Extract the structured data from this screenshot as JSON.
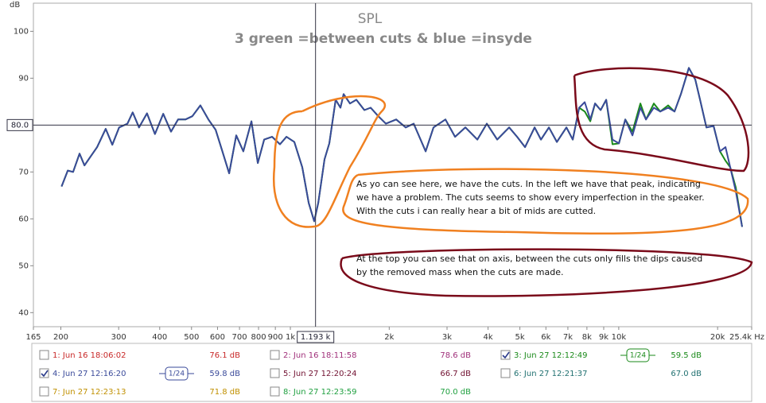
{
  "chart_data": {
    "type": "line",
    "title": "SPL",
    "subtitle": "3 green =between cuts & blue =insyde",
    "y_label": "dB",
    "xlim": [
      165,
      25400
    ],
    "ylim": [
      37,
      106
    ],
    "log_x": true,
    "xticks": [
      165,
      200,
      300,
      400,
      500,
      600,
      700,
      800,
      900,
      {
        "value": 1000,
        "label": "1k"
      },
      {
        "value": 2000,
        "label": "2k"
      },
      {
        "value": 3000,
        "label": "3k"
      },
      {
        "value": 4000,
        "label": "4k"
      },
      {
        "value": 5000,
        "label": "5k"
      },
      {
        "value": 6000,
        "label": "6k"
      },
      {
        "value": 7000,
        "label": "7k"
      },
      {
        "value": 8000,
        "label": "8k"
      },
      {
        "value": 9000,
        "label": "9k"
      },
      {
        "value": 10000,
        "label": "10k"
      },
      {
        "value": 20000,
        "label": "20k"
      },
      {
        "value": 25400,
        "label": "25.4k Hz"
      }
    ],
    "yticks": [
      40,
      50,
      60,
      70,
      80,
      90,
      100
    ],
    "cursor": {
      "x": {
        "value": 1193,
        "label": "1.193 k"
      },
      "y": {
        "value": 80,
        "label": "80.0"
      }
    },
    "x": [
      201,
      210,
      218,
      228,
      236,
      247,
      258,
      274,
      287,
      301,
      319,
      331,
      346,
      366,
      387,
      410,
      433,
      455,
      479,
      503,
      532,
      563,
      592,
      619,
      651,
      684,
      719,
      761,
      796,
      832,
      880,
      930,
      973,
      1028,
      1087,
      1137,
      1182,
      1216,
      1271,
      1314,
      1374,
      1421,
      1453,
      1519,
      1588,
      1680,
      1756,
      1846,
      1953,
      2100,
      2244,
      2374,
      2582,
      2729,
      2967,
      3173,
      3412,
      3709,
      3965,
      4265,
      4637,
      4904,
      5184,
      5544,
      5797,
      6129,
      6480,
      6929,
      7244,
      7575,
      7877,
      8189,
      8469,
      8806,
      9156,
      9573,
      10011,
      10468,
      11007,
      11639,
      12101,
      12792,
      13376,
      14144,
      14789,
      15465,
      16352,
      17100,
      17690,
      18490,
      19440,
      20330,
      21140,
      21850,
      22720,
      23760
    ],
    "series": [
      {
        "name": "3: Jun 27 12:12:49",
        "color": "#1a8a1a",
        "values": [
          66.9,
          70.3,
          70,
          73.9,
          71.4,
          73.4,
          75.3,
          79.2,
          75.8,
          79.5,
          80.3,
          82.7,
          79.5,
          82.5,
          78.1,
          82.4,
          78.6,
          81.2,
          81.2,
          81.9,
          84.2,
          81.2,
          79,
          74.7,
          69.7,
          77.8,
          74.4,
          80.8,
          71.9,
          76.9,
          77.5,
          75.9,
          77.5,
          76.4,
          71,
          63.4,
          59.5,
          63.4,
          72.7,
          76.1,
          85.4,
          83.7,
          86.6,
          84.6,
          85.4,
          83.2,
          83.7,
          82,
          80.3,
          81.2,
          79.5,
          80.3,
          74.4,
          79.5,
          81.2,
          77.5,
          79.5,
          76.9,
          80.3,
          76.9,
          79.5,
          77.5,
          75.3,
          79.5,
          76.9,
          79.5,
          76.4,
          79.5,
          76.9,
          83.7,
          82.9,
          80.8,
          84.6,
          83.2,
          85.4,
          75.9,
          76.1,
          81.2,
          78.6,
          84.6,
          81.2,
          84.6,
          82.9,
          84.2,
          82.9,
          86.6,
          92.2,
          89.7,
          85.4,
          79.5,
          79.8,
          74.4,
          72.4,
          71,
          66.7,
          58.3
        ]
      },
      {
        "name": "4: Jun 27 12:16:20",
        "color": "#3a4a9a",
        "values": [
          66.9,
          70.3,
          70,
          73.9,
          71.4,
          73.4,
          75.3,
          79.2,
          75.8,
          79.5,
          80.3,
          82.7,
          79.5,
          82.5,
          78.1,
          82.4,
          78.6,
          81.2,
          81.2,
          81.9,
          84.2,
          81.2,
          79,
          74.7,
          69.7,
          77.8,
          74.4,
          80.8,
          71.9,
          76.9,
          77.5,
          75.9,
          77.5,
          76.4,
          71,
          63.4,
          59.5,
          63.4,
          72.7,
          76.1,
          85.4,
          83.7,
          86.6,
          84.6,
          85.4,
          83.2,
          83.7,
          82,
          80.3,
          81.2,
          79.5,
          80.3,
          74.4,
          79.5,
          81.2,
          77.5,
          79.5,
          76.9,
          80.3,
          76.9,
          79.5,
          77.5,
          75.3,
          79.5,
          76.9,
          79.5,
          76.4,
          79.5,
          76.9,
          83.7,
          84.9,
          81.2,
          84.6,
          83.2,
          85.4,
          76.9,
          76.1,
          81.2,
          77.8,
          83.7,
          81.2,
          83.7,
          82.9,
          83.7,
          82.9,
          86.6,
          92.2,
          89.7,
          85.4,
          79.5,
          79.8,
          74.4,
          75.3,
          71,
          65.9,
          58.3
        ]
      }
    ],
    "notes": [
      [
        "As yo can see here, we have the cuts. In the left we have that peak, indicating",
        "we have a problem. The cuts seems to show every imperfection in the speaker.",
        "With the cuts i can really hear a bit of mids are cutted."
      ],
      [
        "At the top you can see that on axis, between the cuts only fills the dips caused",
        "by the removed mass when the cuts are made."
      ]
    ],
    "legend": [
      {
        "label": "1: Jun 16 18:06:02",
        "value": "76.1 dB",
        "color": "#c82828",
        "checked": false
      },
      {
        "label": "2: Jun 16 18:11:58",
        "value": "78.6 dB",
        "color": "#a0307a",
        "checked": false
      },
      {
        "label": "3: Jun 27 12:12:49",
        "value": "59.5 dB",
        "color": "#1a8a1a",
        "checked": true,
        "smoothing": "1/24"
      },
      {
        "label": "4: Jun 27 12:16:20",
        "value": "59.8 dB",
        "color": "#3a4a9a",
        "checked": true,
        "smoothing": "1/24"
      },
      {
        "label": "5: Jun 27 12:20:24",
        "value": "66.7 dB",
        "color": "#701030",
        "checked": false
      },
      {
        "label": "6: Jun 27 12:21:37",
        "value": "67.0 dB",
        "color": "#207070",
        "checked": false
      },
      {
        "label": "7: Jun 27 12:23:13",
        "value": "71.8 dB",
        "color": "#c09000",
        "checked": false
      },
      {
        "label": "8: Jun 27 12:23:59",
        "value": "70.0 dB",
        "color": "#20a040",
        "checked": false
      }
    ]
  }
}
